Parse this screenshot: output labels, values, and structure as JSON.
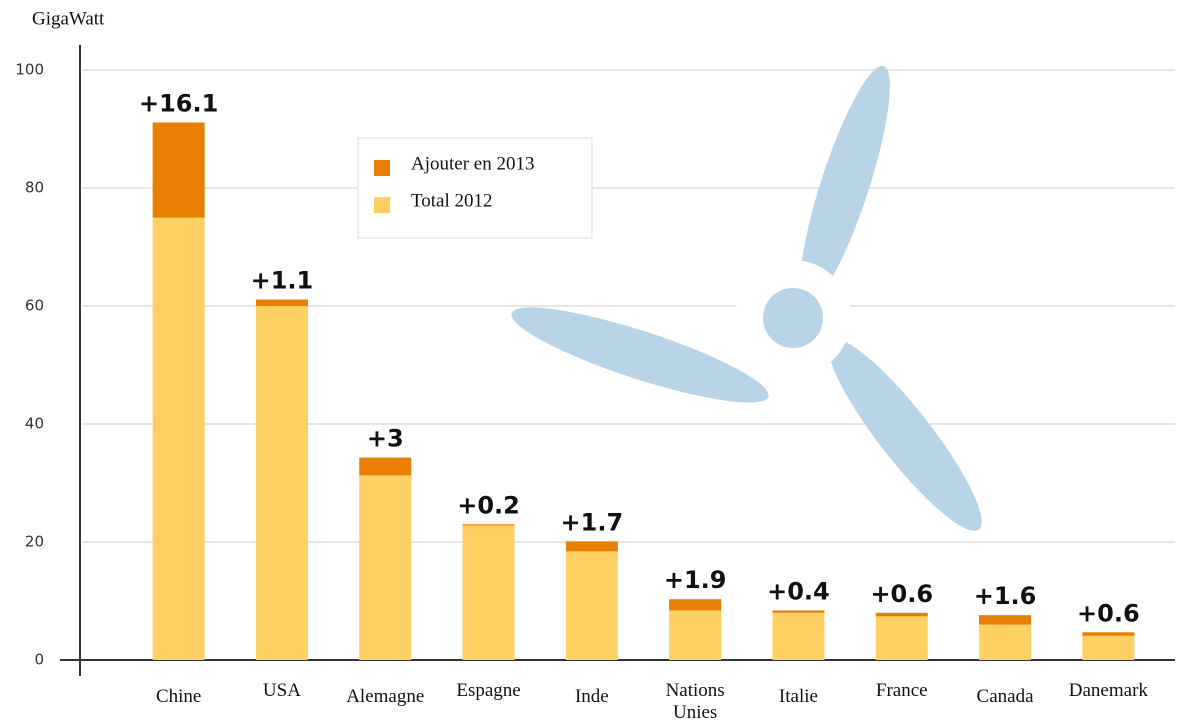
{
  "chart_data": {
    "type": "stacked_bar",
    "y_label": "GigaWatt",
    "categories": [
      "Chine",
      "USA",
      "Alemagne",
      "Espagne",
      "Inde",
      "Nations Unies",
      "Italie",
      "France",
      "Canada",
      "Danemark"
    ],
    "series": [
      {
        "name": "Total 2012",
        "color": "#fdd063",
        "values": [
          75,
          60,
          31.3,
          22.8,
          18.4,
          8.4,
          8.0,
          7.4,
          6.0,
          4.1
        ]
      },
      {
        "name": "Ajouter en 2013",
        "color": "#e87e04",
        "values": [
          16.1,
          1.1,
          3,
          0.2,
          1.7,
          1.9,
          0.4,
          0.6,
          1.6,
          0.6
        ],
        "value_labels": [
          "+16.1",
          "+1.1",
          "+3",
          "+0.2",
          "+1.7",
          "+1.9",
          "+0.4",
          "+0.6",
          "+1.6",
          "+0.6"
        ]
      }
    ],
    "ylim": [
      0,
      100
    ],
    "yticks": [
      0,
      20,
      40,
      60,
      80,
      100
    ],
    "grid": true,
    "legend": "top"
  }
}
